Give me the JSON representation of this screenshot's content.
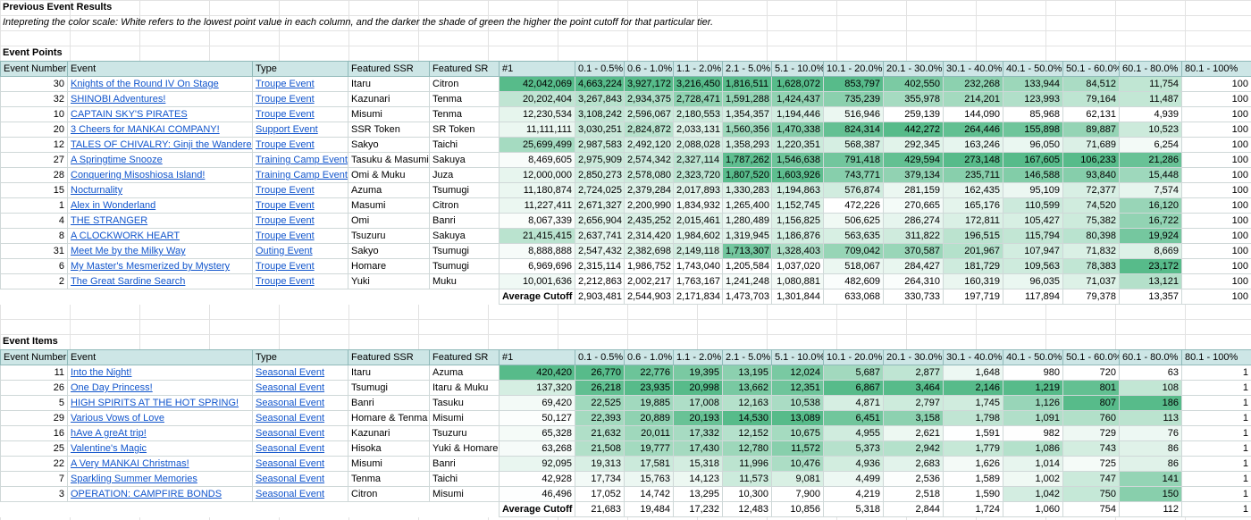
{
  "title": "Previous Event Results",
  "note": "Intepreting the color scale: White refers to the lowest point value in each column, and the darker the shade of green the higher the point cutoff for that particular tier.",
  "heat_color_high": "#57bb8a",
  "heat_color_low": "#ffffff",
  "link_color": "#1155cc",
  "header_color": "#cde6e6",
  "columns": [
    "Event Number",
    "Event",
    "Type",
    "Featured SSR",
    "Featured SR",
    "#1",
    "0.1 - 0.5%",
    "0.6 - 1.0%",
    "1.1 - 2.0%",
    "2.1 - 5.0%",
    "5.1 - 10.0%",
    "10.1 - 20.0%",
    "20.1 - 30.0%",
    "30.1 - 40.0%",
    "40.1 - 50.0%",
    "50.1 - 60.0%",
    "60.1 - 80.0%",
    "80.1 - 100%"
  ],
  "points": {
    "heading": "Event Points",
    "rows": [
      [
        "30",
        "Knights of the Round IV On Stage",
        "Troupe Event",
        "Itaru",
        "Citron",
        "42,042,069",
        "4,663,224",
        "3,927,172",
        "3,216,450",
        "1,816,511",
        "1,628,072",
        "853,797",
        "402,550",
        "232,268",
        "133,944",
        "84,512",
        "11,754",
        "100"
      ],
      [
        "32",
        "SHINOBI Adventures!",
        "Troupe Event",
        "Kazunari",
        "Tenma",
        "20,202,404",
        "3,267,843",
        "2,934,375",
        "2,728,471",
        "1,591,288",
        "1,424,437",
        "735,239",
        "355,978",
        "214,201",
        "123,993",
        "79,164",
        "11,487",
        "100"
      ],
      [
        "10",
        "CAPTAIN SKY'S PIRATES",
        "Troupe Event",
        "Misumi",
        "Tenma",
        "12,230,534",
        "3,108,242",
        "2,596,067",
        "2,180,553",
        "1,354,357",
        "1,194,446",
        "516,946",
        "259,139",
        "144,090",
        "85,968",
        "62,131",
        "4,939",
        "100"
      ],
      [
        "20",
        "3 Cheers for MANKAI COMPANY!",
        "Support Event",
        "SSR Token",
        "SR Token",
        "11,111,111",
        "3,030,251",
        "2,824,872",
        "2,033,131",
        "1,560,356",
        "1,470,338",
        "824,314",
        "442,272",
        "264,446",
        "155,898",
        "89,887",
        "10,523",
        "100"
      ],
      [
        "12",
        "TALES OF CHIVALRY: Ginji the Wanderer",
        "Troupe Event",
        "Sakyo",
        "Taichi",
        "25,699,499",
        "2,987,583",
        "2,492,120",
        "2,088,028",
        "1,358,293",
        "1,220,351",
        "568,387",
        "292,345",
        "163,246",
        "96,050",
        "71,689",
        "6,254",
        "100"
      ],
      [
        "27",
        "A Springtime Snooze",
        "Training Camp Event",
        "Tasuku & Masumi",
        "Sakuya",
        "8,469,605",
        "2,975,909",
        "2,574,342",
        "2,327,114",
        "1,787,262",
        "1,546,638",
        "791,418",
        "429,594",
        "273,148",
        "167,605",
        "106,233",
        "21,286",
        "100"
      ],
      [
        "28",
        "Conquering Misoshiosa Island!",
        "Training Camp Event",
        "Omi & Muku",
        "Juza",
        "12,000,000",
        "2,850,273",
        "2,578,080",
        "2,323,720",
        "1,807,520",
        "1,603,926",
        "743,771",
        "379,134",
        "235,711",
        "146,588",
        "93,840",
        "15,448",
        "100"
      ],
      [
        "15",
        "Nocturnality",
        "Troupe Event",
        "Azuma",
        "Tsumugi",
        "11,180,874",
        "2,724,025",
        "2,379,284",
        "2,017,893",
        "1,330,283",
        "1,194,863",
        "576,874",
        "281,159",
        "162,435",
        "95,109",
        "72,377",
        "7,574",
        "100"
      ],
      [
        "1",
        "Alex in Wonderland",
        "Troupe Event",
        "Masumi",
        "Citron",
        "11,227,411",
        "2,671,327",
        "2,200,990",
        "1,834,932",
        "1,265,400",
        "1,152,745",
        "472,226",
        "270,665",
        "165,176",
        "110,599",
        "74,520",
        "16,120",
        "100"
      ],
      [
        "4",
        "THE STRANGER",
        "Troupe Event",
        "Omi",
        "Banri",
        "8,067,339",
        "2,656,904",
        "2,435,252",
        "2,015,461",
        "1,280,489",
        "1,156,825",
        "506,625",
        "286,274",
        "172,811",
        "105,427",
        "75,382",
        "16,722",
        "100"
      ],
      [
        "8",
        "A CLOCKWORK HEART",
        "Troupe Event",
        "Tsuzuru",
        "Sakuya",
        "21,415,415",
        "2,637,741",
        "2,314,420",
        "1,984,602",
        "1,319,945",
        "1,186,876",
        "563,635",
        "311,822",
        "196,515",
        "115,794",
        "80,398",
        "19,924",
        "100"
      ],
      [
        "31",
        "Meet Me by the Milky Way",
        "Outing Event",
        "Sakyo",
        "Tsumugi",
        "8,888,888",
        "2,547,432",
        "2,382,698",
        "2,149,118",
        "1,713,307",
        "1,328,403",
        "709,042",
        "370,587",
        "201,967",
        "107,947",
        "71,832",
        "8,669",
        "100"
      ],
      [
        "6",
        "My Master's Mesmerized by Mystery",
        "Troupe Event",
        "Homare",
        "Tsumugi",
        "6,969,696",
        "2,315,114",
        "1,986,752",
        "1,743,040",
        "1,205,584",
        "1,037,020",
        "518,067",
        "284,427",
        "181,729",
        "109,563",
        "78,383",
        "23,172",
        "100"
      ],
      [
        "2",
        "The Great Sardine Search",
        "Troupe Event",
        "Yuki",
        "Muku",
        "10,001,636",
        "2,212,863",
        "2,002,217",
        "1,763,167",
        "1,241,248",
        "1,080,881",
        "482,609",
        "264,310",
        "160,319",
        "96,035",
        "71,037",
        "13,121",
        "100"
      ]
    ],
    "average_label": "Average Cutoff",
    "average": [
      "2,903,481",
      "2,544,903",
      "2,171,834",
      "1,473,703",
      "1,301,844",
      "633,068",
      "330,733",
      "197,719",
      "117,894",
      "79,378",
      "13,357",
      "100"
    ]
  },
  "items": {
    "heading": "Event Items",
    "rows": [
      [
        "11",
        "Into the Night!",
        "Seasonal Event",
        "Itaru",
        "Azuma",
        "420,420",
        "26,770",
        "22,776",
        "19,395",
        "13,195",
        "12,024",
        "5,687",
        "2,877",
        "1,648",
        "980",
        "720",
        "63",
        "1"
      ],
      [
        "26",
        "One Day Princess!",
        "Seasonal Event",
        "Tsumugi",
        "Itaru & Muku",
        "137,320",
        "26,218",
        "23,935",
        "20,998",
        "13,662",
        "12,351",
        "6,867",
        "3,464",
        "2,146",
        "1,219",
        "801",
        "108",
        "1"
      ],
      [
        "5",
        "HIGH SPIRITS AT THE HOT SPRING!",
        "Seasonal Event",
        "Banri",
        "Tasuku",
        "69,420",
        "22,525",
        "19,885",
        "17,008",
        "12,163",
        "10,538",
        "4,871",
        "2,797",
        "1,745",
        "1,126",
        "807",
        "186",
        "1"
      ],
      [
        "29",
        "Various Vows of Love",
        "Seasonal Event",
        "Homare & Tenma",
        "Misumi",
        "50,127",
        "22,393",
        "20,889",
        "20,193",
        "14,530",
        "13,089",
        "6,451",
        "3,158",
        "1,798",
        "1,091",
        "760",
        "113",
        "1"
      ],
      [
        "16",
        "hAve A greAt trip!",
        "Seasonal Event",
        "Kazunari",
        "Tsuzuru",
        "65,328",
        "21,632",
        "20,011",
        "17,332",
        "12,152",
        "10,675",
        "4,955",
        "2,621",
        "1,591",
        "982",
        "729",
        "76",
        "1"
      ],
      [
        "25",
        "Valentine's Magic",
        "Seasonal Event",
        "Hisoka",
        "Yuki & Homare",
        "63,268",
        "21,508",
        "19,777",
        "17,430",
        "12,780",
        "11,572",
        "5,373",
        "2,942",
        "1,779",
        "1,086",
        "743",
        "86",
        "1"
      ],
      [
        "22",
        "A Very MANKAI Christmas!",
        "Seasonal Event",
        "Misumi",
        "Banri",
        "92,095",
        "19,313",
        "17,581",
        "15,318",
        "11,996",
        "10,476",
        "4,936",
        "2,683",
        "1,626",
        "1,014",
        "725",
        "86",
        "1"
      ],
      [
        "7",
        "Sparkling Summer Memories",
        "Seasonal Event",
        "Tenma",
        "Taichi",
        "42,928",
        "17,734",
        "15,763",
        "14,123",
        "11,573",
        "9,081",
        "4,499",
        "2,536",
        "1,589",
        "1,002",
        "747",
        "141",
        "1"
      ],
      [
        "3",
        "OPERATION: CAMPFIRE BONDS",
        "Seasonal Event",
        "Citron",
        "Misumi",
        "46,496",
        "17,052",
        "14,742",
        "13,295",
        "10,300",
        "7,900",
        "4,219",
        "2,518",
        "1,590",
        "1,042",
        "750",
        "150",
        "1"
      ]
    ],
    "average_label": "Average Cutoff",
    "average": [
      "21,683",
      "19,484",
      "17,232",
      "12,483",
      "10,856",
      "5,318",
      "2,844",
      "1,724",
      "1,060",
      "754",
      "112",
      "1"
    ]
  }
}
